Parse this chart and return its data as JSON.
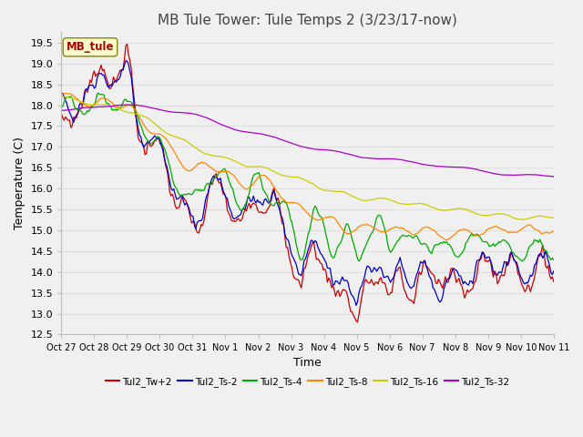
{
  "title": "MB Tule Tower: Tule Temps 2 (3/23/17-now)",
  "xlabel": "Time",
  "ylabel": "Temperature (C)",
  "ylim": [
    12.5,
    19.75
  ],
  "yticks": [
    12.5,
    13.0,
    13.5,
    14.0,
    14.5,
    15.0,
    15.5,
    16.0,
    16.5,
    17.0,
    17.5,
    18.0,
    18.5,
    19.0,
    19.5
  ],
  "xtick_labels": [
    "Oct 27",
    "Oct 28",
    "Oct 29",
    "Oct 30",
    "Oct 31",
    "Nov 1",
    "Nov 2",
    "Nov 3",
    "Nov 4",
    "Nov 5",
    "Nov 6",
    "Nov 7",
    "Nov 8",
    "Nov 9",
    "Nov 10",
    "Nov 11"
  ],
  "series_colors": [
    "#cc0000",
    "#0000cc",
    "#00aa00",
    "#ff8800",
    "#cccc00",
    "#aa00cc"
  ],
  "series_names": [
    "Tul2_Tw+2",
    "Tul2_Ts-2",
    "Tul2_Ts-4",
    "Tul2_Ts-8",
    "Tul2_Ts-16",
    "Tul2_Ts-32"
  ],
  "legend_label": "MB_tule",
  "grid_color": "#e0e0e0",
  "bg_color": "#f0f0f0",
  "title_fontsize": 11,
  "axis_fontsize": 9,
  "tick_fontsize": 8
}
